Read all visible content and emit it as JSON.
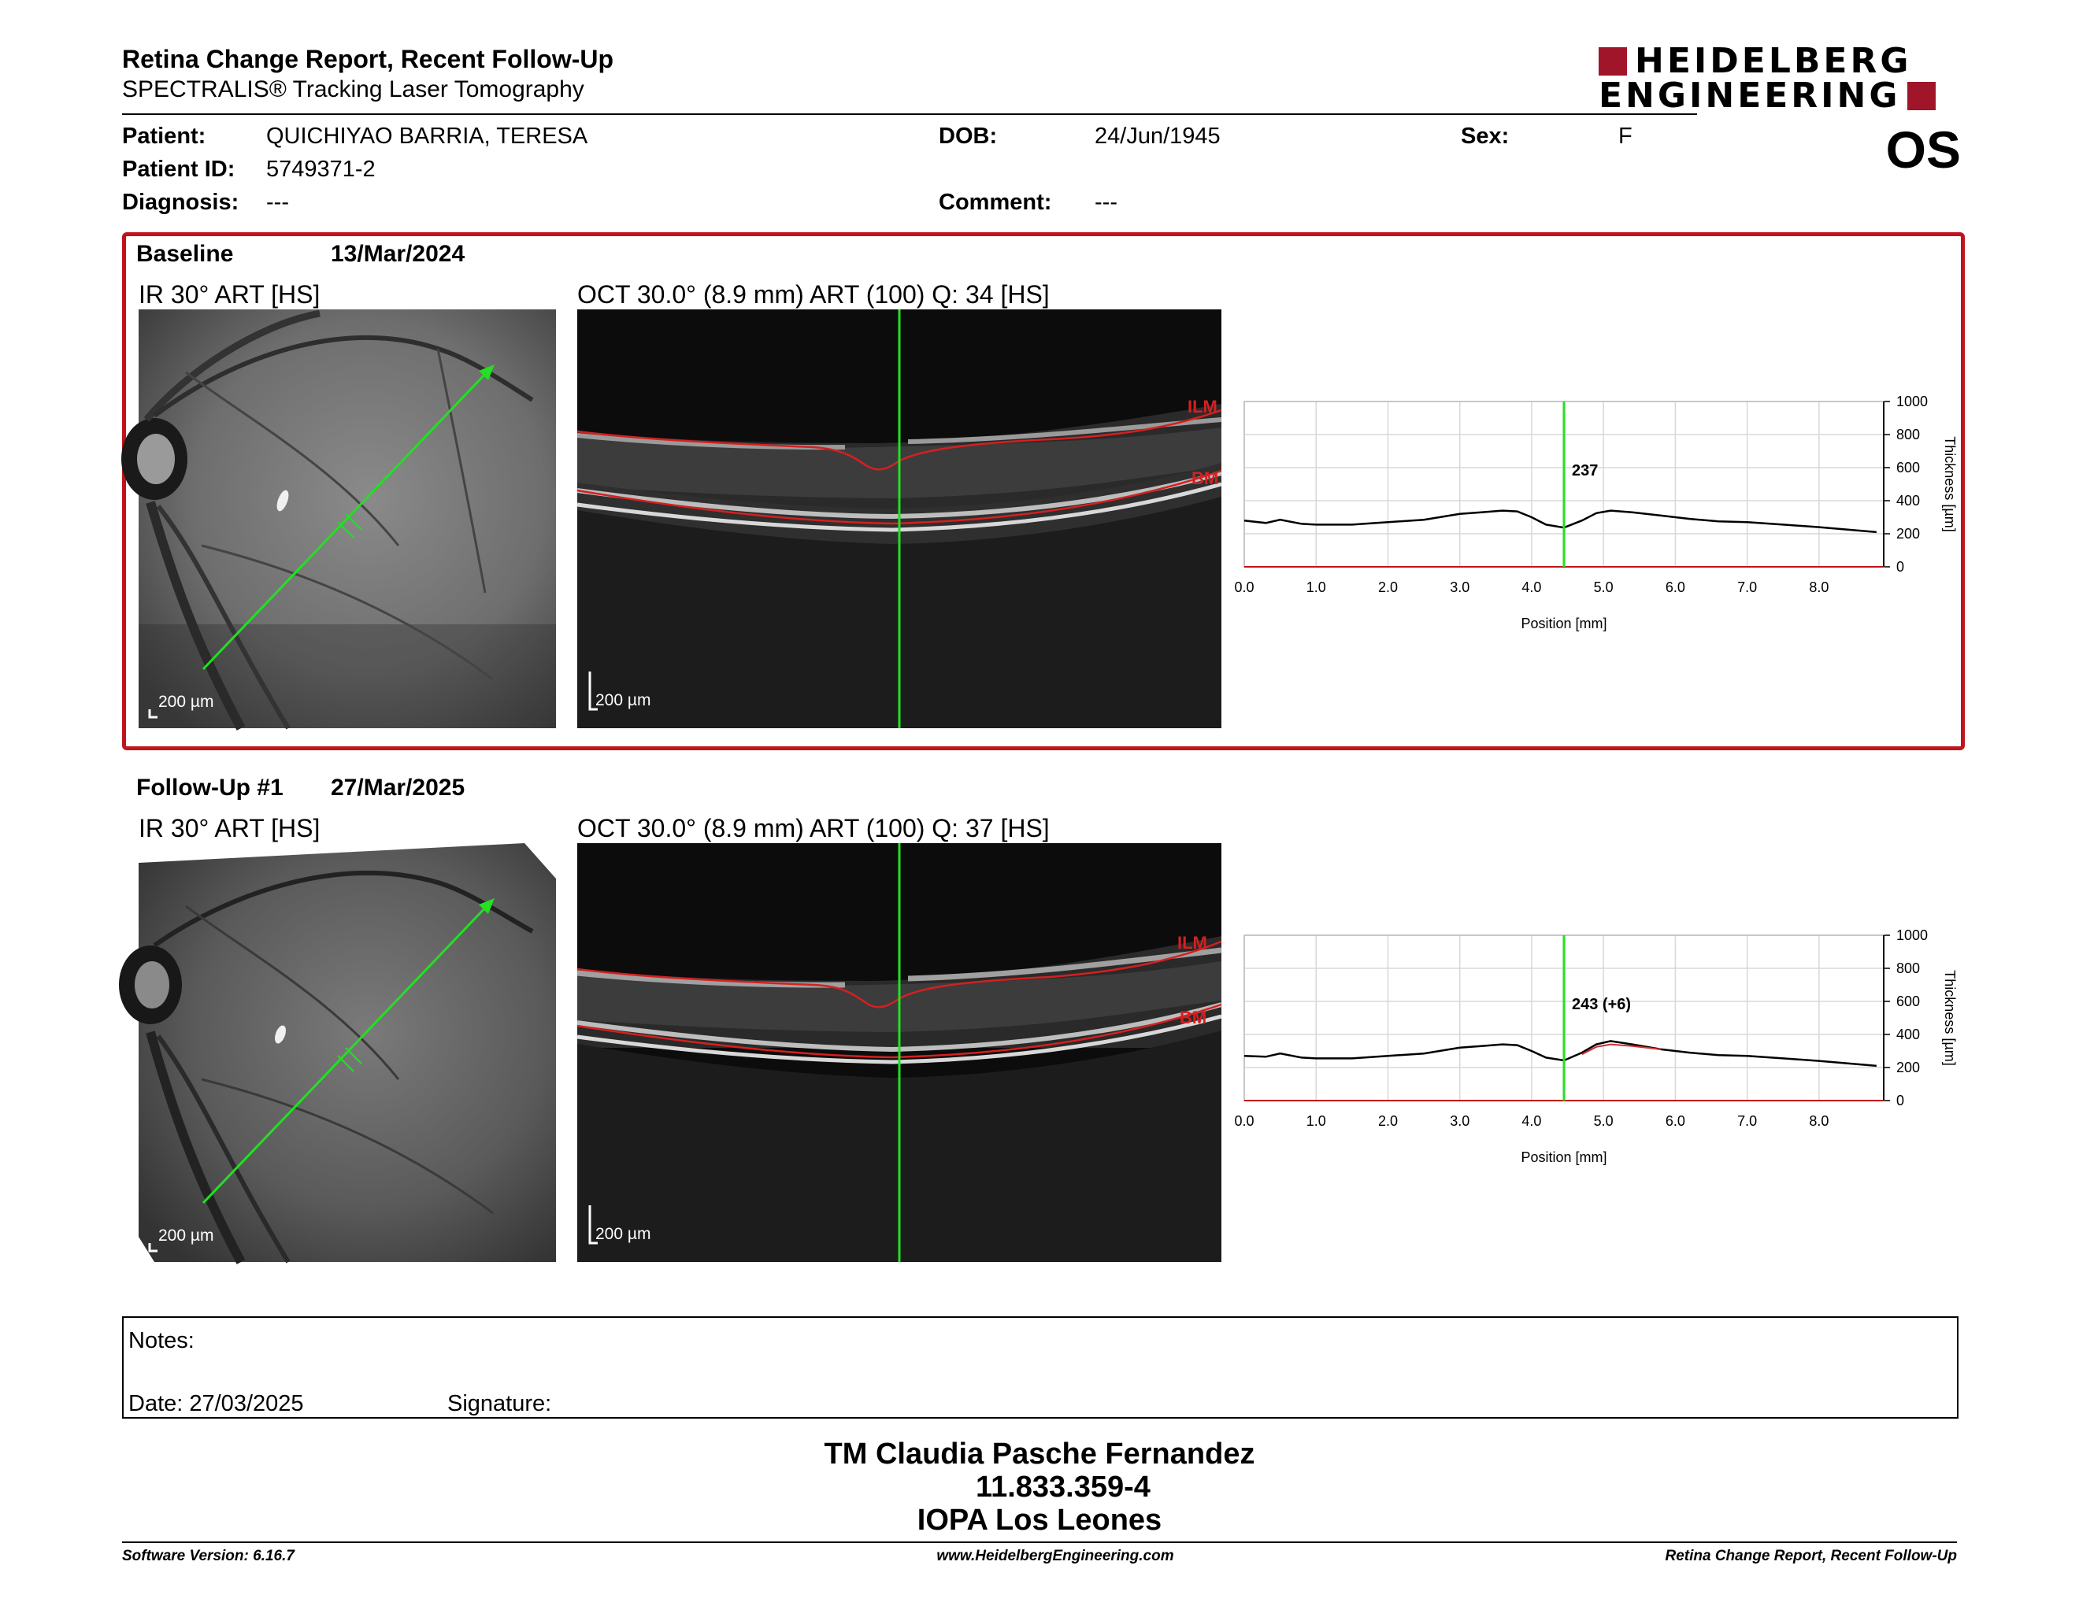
{
  "header": {
    "title": "Retina Change Report, Recent Follow-Up",
    "subtitle": "SPECTRALIS® Tracking Laser Tomography",
    "logo_line1": "HEIDELBERG",
    "logo_line2": "ENGINEERING",
    "eye": "OS"
  },
  "patient": {
    "patient_label": "Patient:",
    "patient_value": "QUICHIYAO BARRIA, TERESA",
    "id_label": "Patient ID:",
    "id_value": "5749371-2",
    "diagnosis_label": "Diagnosis:",
    "diagnosis_value": "---",
    "dob_label": "DOB:",
    "dob_value": "24/Jun/1945",
    "comment_label": "Comment:",
    "comment_value": "---",
    "sex_label": "Sex:",
    "sex_value": "F"
  },
  "baseline": {
    "label": "Baseline",
    "date": "13/Mar/2024",
    "ir_title": "IR 30° ART [HS]",
    "oct_title": "OCT 30.0° (8.9 mm) ART (100) Q: 34 [HS]",
    "scale": "200 µm",
    "ilm": "ILM",
    "bm": "BM"
  },
  "followup": {
    "label": "Follow-Up #1",
    "date": "27/Mar/2025",
    "ir_title": "IR 30° ART [HS]",
    "oct_title": "OCT 30.0° (8.9 mm) ART (100) Q: 37 [HS]",
    "scale": "200 µm",
    "ilm": "ILM",
    "bm": "BM"
  },
  "chart_data": [
    {
      "type": "line",
      "xlabel": "Position [mm]",
      "ylabel": "Thickness [µm]",
      "xlim": [
        0,
        8.9
      ],
      "ylim": [
        0,
        1000
      ],
      "x_ticks": [
        "0.0",
        "1.0",
        "2.0",
        "3.0",
        "4.0",
        "5.0",
        "6.0",
        "7.0",
        "8.0"
      ],
      "y_ticks": [
        "0",
        "200",
        "400",
        "600",
        "800",
        "1000"
      ],
      "grid": true,
      "marker_x": 4.45,
      "marker_label": "237",
      "series": [
        {
          "color": "#000000",
          "x": [
            0.0,
            0.3,
            0.5,
            0.8,
            1.0,
            1.5,
            2.0,
            2.5,
            3.0,
            3.3,
            3.6,
            3.8,
            4.0,
            4.2,
            4.45,
            4.7,
            4.9,
            5.1,
            5.4,
            5.8,
            6.2,
            6.6,
            7.0,
            7.5,
            8.0,
            8.4,
            8.8
          ],
          "y": [
            280,
            265,
            285,
            260,
            255,
            255,
            270,
            285,
            320,
            330,
            340,
            335,
            300,
            255,
            237,
            280,
            325,
            340,
            330,
            310,
            290,
            275,
            270,
            255,
            240,
            225,
            210
          ]
        }
      ]
    },
    {
      "type": "line",
      "xlabel": "Position [mm]",
      "ylabel": "Thickness [µm]",
      "xlim": [
        0,
        8.9
      ],
      "ylim": [
        0,
        1000
      ],
      "x_ticks": [
        "0.0",
        "1.0",
        "2.0",
        "3.0",
        "4.0",
        "5.0",
        "6.0",
        "7.0",
        "8.0"
      ],
      "y_ticks": [
        "0",
        "200",
        "400",
        "600",
        "800",
        "1000"
      ],
      "grid": true,
      "marker_x": 4.45,
      "marker_label": "243 (+6)",
      "series": [
        {
          "color": "#000000",
          "x": [
            0.0,
            0.3,
            0.5,
            0.8,
            1.0,
            1.5,
            2.0,
            2.5,
            3.0,
            3.3,
            3.6,
            3.8,
            4.0,
            4.2,
            4.45,
            4.7,
            4.9,
            5.1,
            5.4,
            5.8,
            6.2,
            6.6,
            7.0,
            7.5,
            8.0,
            8.4,
            8.8
          ],
          "y": [
            270,
            265,
            285,
            260,
            255,
            255,
            270,
            285,
            320,
            330,
            340,
            335,
            300,
            260,
            243,
            290,
            340,
            360,
            340,
            310,
            290,
            275,
            270,
            255,
            240,
            225,
            210
          ]
        },
        {
          "color": "#d03030",
          "x": [
            4.7,
            4.9,
            5.1,
            5.4,
            5.8
          ],
          "y": [
            280,
            325,
            340,
            330,
            310
          ]
        }
      ]
    }
  ],
  "notes": {
    "label": "Notes:",
    "date": "Date: 27/03/2025",
    "signature": "Signature:"
  },
  "signoff": {
    "name": "TM Claudia Pasche Fernandez",
    "id": "11.833.359-4",
    "place": "IOPA Los Leones"
  },
  "footer": {
    "version": "Software Version: 6.16.7",
    "url": "www.HeidelbergEngineering.com",
    "report": "Retina Change Report, Recent Follow-Up"
  }
}
